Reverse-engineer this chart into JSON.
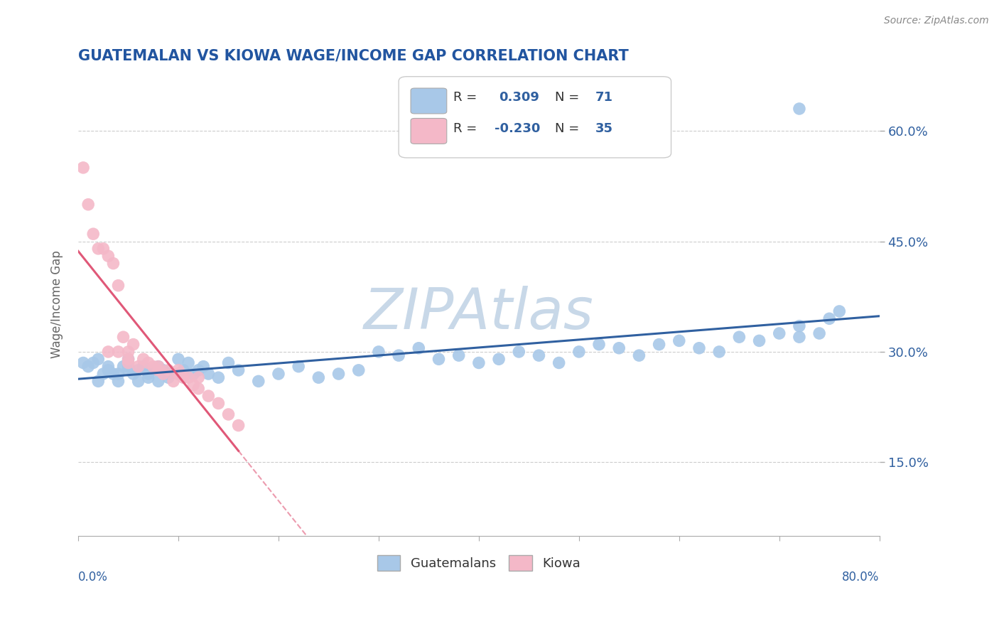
{
  "title": "GUATEMALAN VS KIOWA WAGE/INCOME GAP CORRELATION CHART",
  "source": "Source: ZipAtlas.com",
  "ylabel": "Wage/Income Gap",
  "ytick_labels": [
    "15.0%",
    "30.0%",
    "45.0%",
    "60.0%"
  ],
  "ytick_values": [
    0.15,
    0.3,
    0.45,
    0.6
  ],
  "xlim": [
    0.0,
    0.8
  ],
  "ylim": [
    0.05,
    0.68
  ],
  "blue_color": "#a8c8e8",
  "pink_color": "#f4b8c8",
  "blue_line_color": "#3060a0",
  "pink_line_color": "#e05878",
  "title_color": "#2255a0",
  "axis_label_color": "#3060a0",
  "watermark": "ZIPAtlas",
  "watermark_color": "#c8d8e8",
  "blue_R": 0.309,
  "blue_N": 71,
  "pink_R": -0.23,
  "pink_N": 35,
  "blue_scatter_x": [
    0.005,
    0.01,
    0.015,
    0.02,
    0.02,
    0.025,
    0.03,
    0.03,
    0.035,
    0.04,
    0.04,
    0.045,
    0.05,
    0.05,
    0.05,
    0.055,
    0.06,
    0.06,
    0.065,
    0.07,
    0.07,
    0.075,
    0.08,
    0.08,
    0.085,
    0.09,
    0.09,
    0.1,
    0.1,
    0.105,
    0.11,
    0.115,
    0.12,
    0.125,
    0.13,
    0.14,
    0.15,
    0.16,
    0.18,
    0.2,
    0.22,
    0.24,
    0.26,
    0.28,
    0.3,
    0.32,
    0.34,
    0.36,
    0.38,
    0.4,
    0.42,
    0.44,
    0.46,
    0.48,
    0.5,
    0.52,
    0.54,
    0.56,
    0.58,
    0.6,
    0.62,
    0.64,
    0.66,
    0.68,
    0.7,
    0.72,
    0.72,
    0.74,
    0.75,
    0.76,
    0.72
  ],
  "blue_scatter_y": [
    0.285,
    0.28,
    0.285,
    0.29,
    0.26,
    0.27,
    0.28,
    0.275,
    0.27,
    0.27,
    0.26,
    0.28,
    0.28,
    0.275,
    0.29,
    0.27,
    0.26,
    0.275,
    0.28,
    0.27,
    0.265,
    0.275,
    0.26,
    0.28,
    0.275,
    0.27,
    0.265,
    0.29,
    0.27,
    0.275,
    0.285,
    0.27,
    0.275,
    0.28,
    0.27,
    0.265,
    0.285,
    0.275,
    0.26,
    0.27,
    0.28,
    0.265,
    0.27,
    0.275,
    0.3,
    0.295,
    0.305,
    0.29,
    0.295,
    0.285,
    0.29,
    0.3,
    0.295,
    0.285,
    0.3,
    0.31,
    0.305,
    0.295,
    0.31,
    0.315,
    0.305,
    0.3,
    0.32,
    0.315,
    0.325,
    0.32,
    0.335,
    0.325,
    0.345,
    0.355,
    0.63
  ],
  "pink_scatter_x": [
    0.005,
    0.01,
    0.015,
    0.02,
    0.025,
    0.03,
    0.035,
    0.04,
    0.04,
    0.045,
    0.05,
    0.05,
    0.055,
    0.06,
    0.065,
    0.07,
    0.075,
    0.08,
    0.085,
    0.09,
    0.095,
    0.1,
    0.105,
    0.11,
    0.115,
    0.12,
    0.13,
    0.14,
    0.15,
    0.16,
    0.03,
    0.05,
    0.08,
    0.1,
    0.12
  ],
  "pink_scatter_y": [
    0.55,
    0.5,
    0.46,
    0.44,
    0.44,
    0.43,
    0.42,
    0.3,
    0.39,
    0.32,
    0.3,
    0.29,
    0.31,
    0.28,
    0.29,
    0.285,
    0.28,
    0.275,
    0.27,
    0.275,
    0.26,
    0.27,
    0.265,
    0.265,
    0.255,
    0.25,
    0.24,
    0.23,
    0.215,
    0.2,
    0.3,
    0.285,
    0.28,
    0.275,
    0.265
  ]
}
